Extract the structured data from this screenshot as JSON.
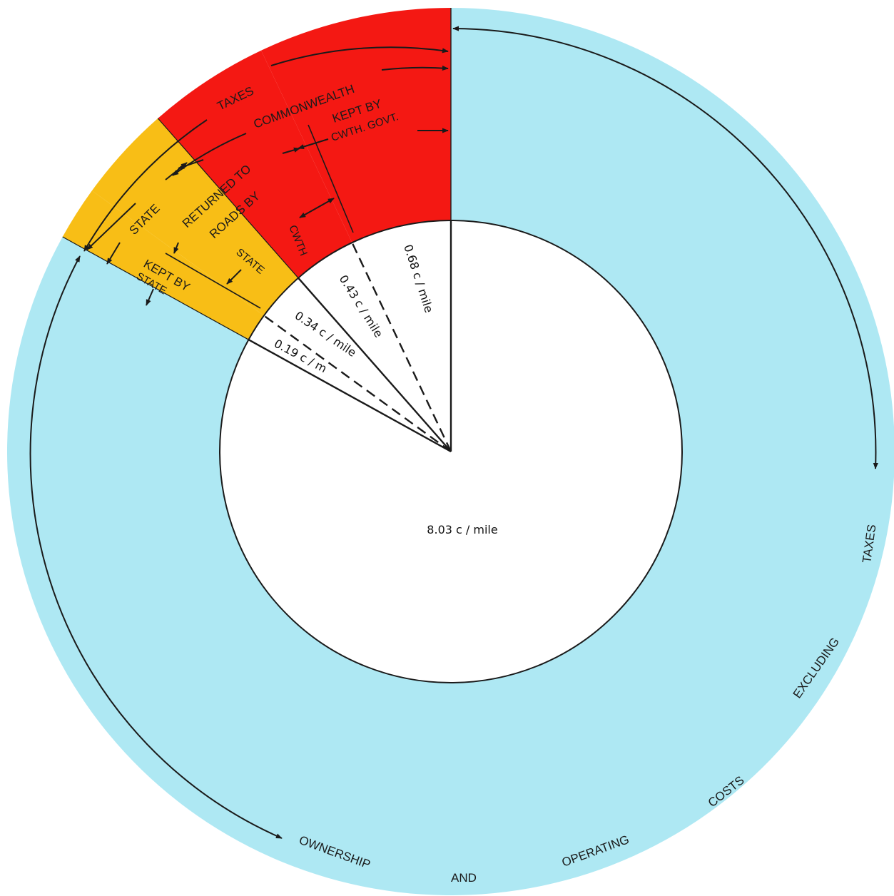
{
  "chart_data": {
    "type": "pie",
    "colors": {
      "operating": "#aee8f3",
      "state": "#f8be16",
      "commonwealth": "#f41813",
      "inner": "#ffffff",
      "stroke": "#1a1a1a"
    },
    "slices": [
      {
        "key": "operating",
        "value": 8.03,
        "label": "8.03 c / mile"
      },
      {
        "key": "state_kept",
        "value": 0.19,
        "label": "0.19 c / m"
      },
      {
        "key": "state_returned",
        "value": 0.34,
        "label": "0.34 c / mile"
      },
      {
        "key": "cwth_returned",
        "value": 0.43,
        "label": "0.43 c / mile"
      },
      {
        "key": "cwth_kept",
        "value": 0.68,
        "label": "0.68 c / mile"
      }
    ],
    "outer_arc_words": [
      "OWNERSHIP",
      "AND",
      "OPERATING",
      "COSTS",
      "EXCLUDING",
      "TAXES"
    ],
    "annotations": {
      "taxes": "TAXES",
      "commonwealth": "COMMONWEALTH",
      "state": "STATE",
      "kept_by_state_1": "KEPT BY",
      "kept_by_state_2": "STATE",
      "returned_1": "RETURNED TO",
      "returned_2": "ROADS BY",
      "returned_state": "STATE",
      "returned_cwth": "CWTH",
      "kept_by_cwth_1": "KEPT BY",
      "kept_by_cwth_2": "CWTH. GOVT."
    }
  }
}
